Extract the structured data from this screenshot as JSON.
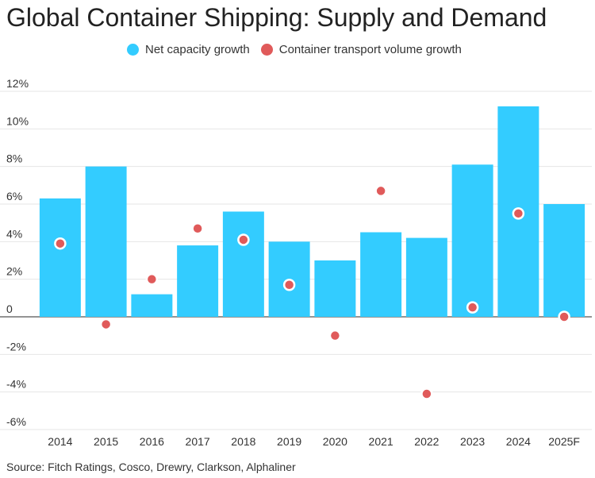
{
  "chart_data": {
    "type": "bar",
    "title": "Global Container Shipping: Supply and Demand",
    "categories": [
      "2014",
      "2015",
      "2016",
      "2017",
      "2018",
      "2019",
      "2020",
      "2021",
      "2022",
      "2023",
      "2024",
      "2025F"
    ],
    "series": [
      {
        "name": "Net capacity growth",
        "type": "bar",
        "color": "#33ccff",
        "values": [
          6.3,
          8.0,
          1.2,
          3.8,
          5.6,
          4.0,
          3.0,
          4.5,
          4.2,
          8.1,
          11.2,
          6.0
        ]
      },
      {
        "name": "Container transport volume growth",
        "type": "scatter",
        "color": "#e05a5a",
        "values": [
          3.9,
          -0.4,
          2.0,
          4.7,
          4.1,
          1.7,
          -1.0,
          6.7,
          -4.1,
          0.5,
          5.5,
          0.0
        ]
      }
    ],
    "ylim": [
      -6,
      12
    ],
    "yticks": [
      -6,
      -4,
      -2,
      0,
      2,
      4,
      6,
      8,
      10,
      12
    ],
    "ytick_labels": [
      "-6%",
      "-4%",
      "-2%",
      "0",
      "2%",
      "4%",
      "6%",
      "8%",
      "10%",
      "12%"
    ],
    "xlabel": "",
    "ylabel": "",
    "grid": true,
    "legend": "top-center",
    "source": "Source: Fitch Ratings, Cosco, Drewry, Clarkson, Alphaliner"
  }
}
